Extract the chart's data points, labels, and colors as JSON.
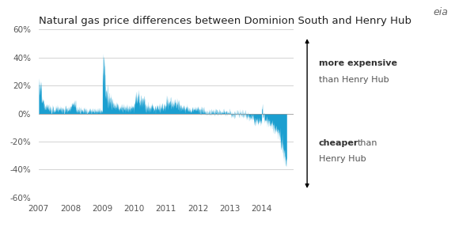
{
  "title": "Natural gas price differences between Dominion South and Henry Hub",
  "title_fontsize": 9.5,
  "ylim": [
    -0.6,
    0.6
  ],
  "yticks": [
    -0.6,
    -0.4,
    -0.2,
    0.0,
    0.2,
    0.4,
    0.6
  ],
  "ytick_labels": [
    "-60%",
    "-40%",
    "-20%",
    "0%",
    "20%",
    "40%",
    "60%"
  ],
  "xtick_years": [
    2007,
    2008,
    2009,
    2010,
    2011,
    2012,
    2013,
    2014
  ],
  "bar_color": "#1b9fd0",
  "background_color": "#ffffff",
  "grid_color": "#cccccc",
  "text_color_dark": "#333333",
  "text_color_mid": "#555555"
}
